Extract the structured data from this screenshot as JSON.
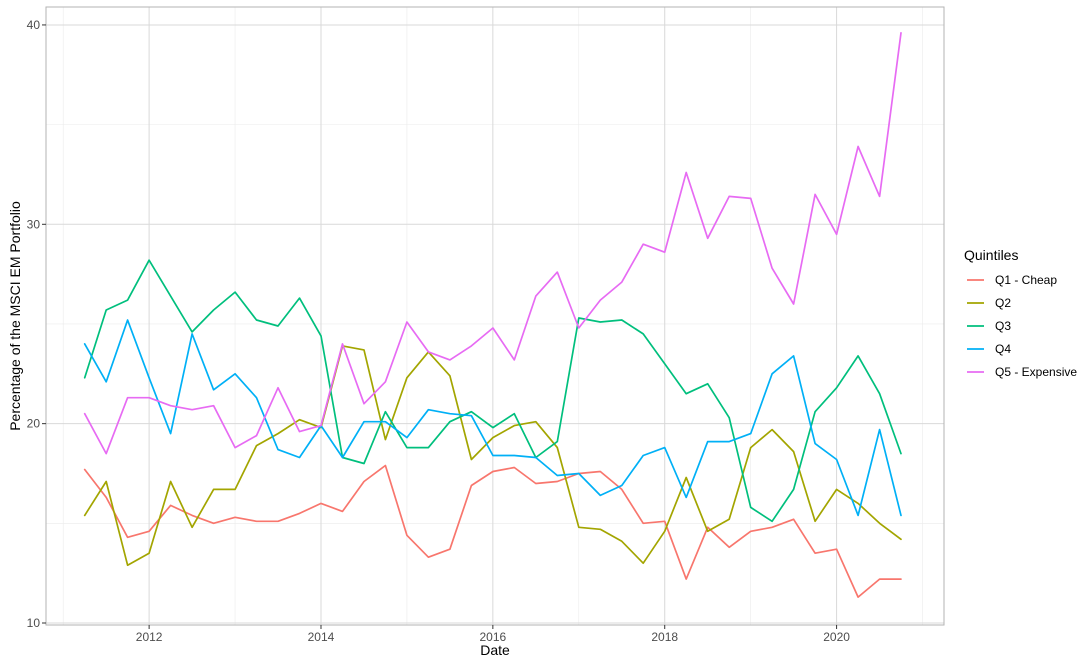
{
  "chart_data": {
    "type": "line",
    "xlabel": "Date",
    "ylabel": "Percentage of the MSCI EM Portfolio",
    "xlim": [
      2010.8,
      2021.25
    ],
    "ylim": [
      9.9,
      40.9
    ],
    "x_ticks": [
      2012,
      2014,
      2016,
      2018,
      2020
    ],
    "y_ticks": [
      10,
      20,
      30,
      40
    ],
    "grid": true,
    "legend": {
      "title": "Quintiles",
      "position": "right"
    },
    "x": [
      2011.25,
      2011.5,
      2011.75,
      2012.0,
      2012.25,
      2012.5,
      2012.75,
      2013.0,
      2013.25,
      2013.5,
      2013.75,
      2014.0,
      2014.25,
      2014.5,
      2014.75,
      2015.0,
      2015.25,
      2015.5,
      2015.75,
      2016.0,
      2016.25,
      2016.5,
      2016.75,
      2017.0,
      2017.25,
      2017.5,
      2017.75,
      2018.0,
      2018.25,
      2018.5,
      2018.75,
      2019.0,
      2019.25,
      2019.5,
      2019.75,
      2020.0,
      2020.25,
      2020.5,
      2020.75
    ],
    "series": [
      {
        "name": "Q1 - Cheap",
        "color": "#F8766D",
        "values": [
          17.7,
          16.3,
          14.3,
          14.6,
          15.9,
          15.4,
          15.0,
          15.3,
          15.1,
          15.1,
          15.5,
          16.0,
          15.6,
          17.1,
          17.9,
          14.4,
          13.3,
          13.7,
          16.9,
          17.6,
          17.8,
          17.0,
          17.1,
          17.5,
          17.6,
          16.7,
          15.0,
          15.1,
          12.2,
          14.8,
          13.8,
          14.6,
          14.8,
          15.2,
          13.5,
          13.7,
          11.3,
          12.2,
          12.2
        ]
      },
      {
        "name": "Q2",
        "color": "#A3A500",
        "values": [
          15.4,
          17.1,
          12.9,
          13.5,
          17.1,
          14.8,
          16.7,
          16.7,
          18.9,
          19.5,
          20.2,
          19.8,
          23.9,
          23.7,
          19.2,
          22.3,
          23.6,
          22.4,
          18.2,
          19.3,
          19.9,
          20.1,
          18.8,
          14.8,
          14.7,
          14.1,
          13.0,
          14.6,
          17.3,
          14.6,
          15.2,
          18.8,
          19.7,
          18.6,
          15.1,
          16.7,
          16.0,
          15.0,
          14.2
        ]
      },
      {
        "name": "Q3",
        "color": "#00BF7D",
        "values": [
          22.3,
          25.7,
          26.2,
          28.2,
          26.4,
          24.6,
          25.7,
          26.6,
          25.2,
          24.9,
          26.3,
          24.4,
          18.3,
          18.0,
          20.6,
          18.8,
          18.8,
          20.1,
          20.6,
          19.8,
          20.5,
          18.3,
          19.1,
          25.3,
          25.1,
          25.2,
          24.5,
          23.0,
          21.5,
          22.0,
          20.3,
          15.8,
          15.1,
          16.7,
          20.6,
          21.8,
          23.4,
          21.5,
          18.5
        ]
      },
      {
        "name": "Q4",
        "color": "#00B0F6",
        "values": [
          24.0,
          22.1,
          25.2,
          22.3,
          19.5,
          24.5,
          21.7,
          22.5,
          21.3,
          18.7,
          18.3,
          19.9,
          18.3,
          20.1,
          20.1,
          19.3,
          20.7,
          20.5,
          20.4,
          18.4,
          18.4,
          18.3,
          17.4,
          17.5,
          16.4,
          16.9,
          18.4,
          18.8,
          16.3,
          19.1,
          19.1,
          19.5,
          22.5,
          23.4,
          19.0,
          18.2,
          15.4,
          19.7,
          15.4
        ]
      },
      {
        "name": "Q5 - Expensive",
        "color": "#E76BF3",
        "values": [
          20.5,
          18.5,
          21.3,
          21.3,
          20.9,
          20.7,
          20.9,
          18.8,
          19.4,
          21.8,
          19.6,
          19.9,
          24.0,
          21.0,
          22.1,
          25.1,
          23.6,
          23.2,
          23.9,
          24.8,
          23.2,
          26.4,
          27.6,
          24.8,
          26.2,
          27.1,
          29.0,
          28.6,
          32.6,
          29.3,
          31.4,
          31.3,
          27.8,
          26.0,
          31.5,
          29.5,
          33.9,
          31.4,
          39.6
        ]
      }
    ]
  }
}
